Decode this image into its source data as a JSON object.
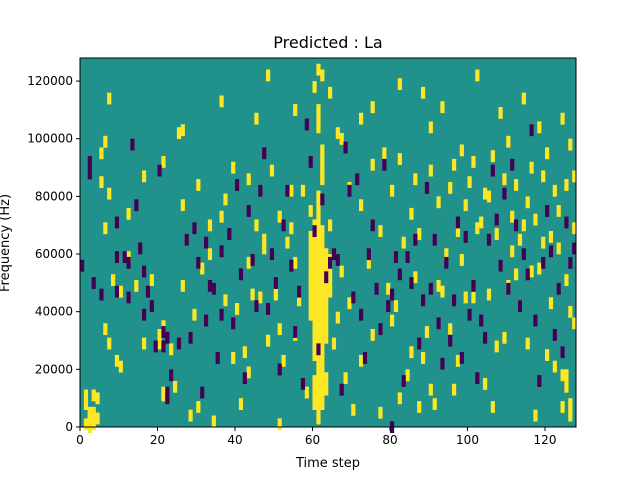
{
  "chart_data": {
    "type": "heatmap",
    "title": "Predicted : La",
    "xlabel": "Time step",
    "ylabel": "Frequency (Hz)",
    "xlim": [
      0,
      128
    ],
    "ylim": [
      0,
      128000
    ],
    "x_ticks": [
      0,
      20,
      40,
      60,
      80,
      100,
      120
    ],
    "y_ticks": [
      0,
      20000,
      40000,
      60000,
      80000,
      100000,
      120000
    ],
    "x_tick_labels": [
      "0",
      "20",
      "40",
      "60",
      "80",
      "100",
      "120"
    ],
    "y_tick_labels": [
      "0",
      "20000",
      "40000",
      "60000",
      "80000",
      "100000",
      "120000"
    ],
    "colormap": "viridis",
    "colors": {
      "background": "#21918c",
      "high": "#fde725",
      "low": "#440154"
    },
    "grid": false,
    "background_value": 0,
    "high_cells": [
      [
        1,
        9
      ],
      [
        1,
        2
      ],
      [
        3,
        12
      ],
      [
        2,
        6
      ],
      [
        2,
        1
      ],
      [
        3,
        6
      ],
      [
        4,
        4
      ],
      [
        5,
        96
      ],
      [
        6,
        100
      ],
      [
        7,
        115
      ],
      [
        1,
        12
      ],
      [
        3,
        4
      ],
      [
        3,
        5
      ],
      [
        3,
        3
      ],
      [
        3,
        2
      ],
      [
        2,
        3
      ],
      [
        2,
        5
      ],
      [
        4,
        11
      ],
      [
        6,
        70
      ],
      [
        5,
        86
      ],
      [
        8,
        52
      ],
      [
        7,
        30
      ],
      [
        10,
        48
      ],
      [
        9,
        24
      ],
      [
        12,
        60
      ],
      [
        14,
        50
      ],
      [
        16,
        30
      ],
      [
        18,
        52
      ],
      [
        20,
        33
      ],
      [
        21,
        36
      ],
      [
        20,
        30
      ],
      [
        21,
        13
      ],
      [
        21,
        12
      ],
      [
        23,
        28
      ],
      [
        24,
        15
      ],
      [
        26,
        50
      ],
      [
        28,
        5
      ],
      [
        29,
        40
      ],
      [
        30,
        8
      ],
      [
        31,
        56
      ],
      [
        33,
        61
      ],
      [
        34,
        3
      ],
      [
        36,
        74
      ],
      [
        37,
        45
      ],
      [
        39,
        25
      ],
      [
        40,
        42
      ],
      [
        41,
        9
      ],
      [
        42,
        27
      ],
      [
        43,
        58
      ],
      [
        43,
        20
      ],
      [
        44,
        47
      ],
      [
        45,
        71
      ],
      [
        46,
        46
      ],
      [
        47,
        63
      ],
      [
        48,
        31
      ],
      [
        49,
        90
      ],
      [
        50,
        47
      ],
      [
        51,
        35
      ],
      [
        51,
        2
      ],
      [
        52,
        24
      ],
      [
        53,
        65
      ],
      [
        54,
        70
      ],
      [
        55,
        58
      ],
      [
        55,
        33
      ],
      [
        56,
        45
      ],
      [
        57,
        83
      ],
      [
        58,
        13
      ],
      [
        59,
        52
      ],
      [
        61,
        26
      ],
      [
        62,
        40
      ],
      [
        63,
        49
      ],
      [
        64,
        48
      ],
      [
        65,
        30
      ],
      [
        66,
        39
      ],
      [
        67,
        55
      ],
      [
        68,
        18
      ],
      [
        69,
        44
      ],
      [
        70,
        7
      ],
      [
        72,
        24
      ],
      [
        74,
        58
      ],
      [
        75,
        33
      ],
      [
        77,
        6
      ],
      [
        79,
        49
      ],
      [
        80,
        38
      ],
      [
        81,
        43
      ],
      [
        82,
        11
      ],
      [
        83,
        65
      ],
      [
        84,
        19
      ],
      [
        85,
        27
      ],
      [
        86,
        53
      ],
      [
        87,
        8
      ],
      [
        88,
        25
      ],
      [
        89,
        34
      ],
      [
        90,
        14
      ],
      [
        91,
        9
      ],
      [
        92,
        50
      ],
      [
        93,
        48
      ],
      [
        94,
        61
      ],
      [
        95,
        35
      ],
      [
        96,
        14
      ],
      [
        97,
        24
      ],
      [
        98,
        59
      ],
      [
        99,
        46
      ],
      [
        101,
        46
      ],
      [
        102,
        70
      ],
      [
        104,
        16
      ],
      [
        105,
        47
      ],
      [
        106,
        8
      ],
      [
        107,
        29
      ],
      [
        109,
        32
      ],
      [
        110,
        50
      ],
      [
        111,
        62
      ],
      [
        112,
        54
      ],
      [
        113,
        43
      ],
      [
        114,
        71
      ],
      [
        115,
        30
      ],
      [
        116,
        55
      ],
      [
        117,
        5
      ],
      [
        118,
        56
      ],
      [
        119,
        65
      ],
      [
        120,
        26
      ],
      [
        121,
        44
      ],
      [
        122,
        22
      ],
      [
        123,
        63
      ],
      [
        124,
        8
      ],
      [
        125,
        52
      ],
      [
        126,
        41
      ],
      [
        127,
        37
      ],
      [
        26,
        104
      ],
      [
        25,
        103
      ],
      [
        36,
        114
      ],
      [
        45,
        108
      ],
      [
        48,
        123
      ],
      [
        55,
        111
      ],
      [
        60,
        119
      ],
      [
        61,
        125
      ],
      [
        62,
        123
      ],
      [
        64,
        117
      ],
      [
        66,
        103
      ],
      [
        72,
        108
      ],
      [
        75,
        112
      ],
      [
        78,
        96
      ],
      [
        82,
        120
      ],
      [
        86,
        87
      ],
      [
        88,
        117
      ],
      [
        90,
        105
      ],
      [
        93,
        112
      ],
      [
        96,
        92
      ],
      [
        98,
        97
      ],
      [
        100,
        86
      ],
      [
        102,
        123
      ],
      [
        104,
        82
      ],
      [
        106,
        95
      ],
      [
        108,
        110
      ],
      [
        110,
        100
      ],
      [
        112,
        85
      ],
      [
        114,
        115
      ],
      [
        116,
        91
      ],
      [
        118,
        105
      ],
      [
        120,
        96
      ],
      [
        122,
        83
      ],
      [
        124,
        108
      ],
      [
        126,
        99
      ],
      [
        127,
        88
      ],
      [
        7,
        82
      ],
      [
        12,
        75
      ],
      [
        16,
        88
      ],
      [
        21,
        93
      ],
      [
        26,
        78
      ],
      [
        30,
        85
      ],
      [
        33,
        71
      ],
      [
        37,
        80
      ],
      [
        39,
        91
      ],
      [
        43,
        87
      ],
      [
        47,
        66
      ],
      [
        51,
        74
      ],
      [
        54,
        83
      ],
      [
        59,
        76
      ],
      [
        62,
        88
      ],
      [
        64,
        71
      ],
      [
        67,
        101
      ],
      [
        69,
        84
      ],
      [
        72,
        78
      ],
      [
        75,
        92
      ],
      [
        77,
        69
      ],
      [
        80,
        83
      ],
      [
        82,
        94
      ],
      [
        85,
        75
      ],
      [
        87,
        68
      ],
      [
        90,
        90
      ],
      [
        92,
        79
      ],
      [
        95,
        84
      ],
      [
        97,
        69
      ],
      [
        99,
        78
      ],
      [
        101,
        93
      ],
      [
        103,
        72
      ],
      [
        105,
        81
      ],
      [
        107,
        68
      ],
      [
        109,
        87
      ],
      [
        111,
        74
      ],
      [
        113,
        66
      ],
      [
        115,
        79
      ],
      [
        117,
        73
      ],
      [
        119,
        88
      ],
      [
        121,
        67
      ],
      [
        123,
        76
      ],
      [
        125,
        85
      ],
      [
        127,
        70
      ],
      [
        6,
        35
      ],
      [
        10,
        22
      ]
    ],
    "low_cells": [
      [
        0,
        57
      ],
      [
        2,
        93
      ],
      [
        2,
        89
      ],
      [
        3,
        51
      ],
      [
        5,
        47
      ],
      [
        9,
        60
      ],
      [
        9,
        72
      ],
      [
        11,
        60
      ],
      [
        12,
        46
      ],
      [
        13,
        99
      ],
      [
        14,
        78
      ],
      [
        15,
        63
      ],
      [
        16,
        55
      ],
      [
        16,
        40
      ],
      [
        17,
        48
      ],
      [
        18,
        43
      ],
      [
        19,
        29
      ],
      [
        20,
        90
      ],
      [
        21,
        34
      ],
      [
        22,
        32
      ],
      [
        22,
        13
      ],
      [
        22,
        11
      ],
      [
        23,
        19
      ],
      [
        25,
        30
      ],
      [
        27,
        66
      ],
      [
        28,
        32
      ],
      [
        29,
        70
      ],
      [
        30,
        58
      ],
      [
        31,
        13
      ],
      [
        32,
        65
      ],
      [
        32,
        38
      ],
      [
        33,
        50
      ],
      [
        34,
        49
      ],
      [
        35,
        25
      ],
      [
        36,
        62
      ],
      [
        38,
        68
      ],
      [
        39,
        37
      ],
      [
        40,
        85
      ],
      [
        41,
        54
      ],
      [
        42,
        18
      ],
      [
        43,
        76
      ],
      [
        44,
        59
      ],
      [
        45,
        43
      ],
      [
        46,
        83
      ],
      [
        47,
        96
      ],
      [
        48,
        42
      ],
      [
        49,
        61
      ],
      [
        50,
        51
      ],
      [
        51,
        21
      ],
      [
        52,
        71
      ],
      [
        53,
        83
      ],
      [
        54,
        57
      ],
      [
        55,
        34
      ],
      [
        56,
        48
      ],
      [
        57,
        16
      ],
      [
        58,
        106
      ],
      [
        59,
        93
      ],
      [
        60,
        69
      ],
      [
        61,
        28
      ],
      [
        62,
        80
      ],
      [
        63,
        53
      ],
      [
        64,
        58
      ],
      [
        65,
        61
      ],
      [
        66,
        59
      ],
      [
        67,
        14
      ],
      [
        68,
        98
      ],
      [
        69,
        83
      ],
      [
        70,
        46
      ],
      [
        71,
        87
      ],
      [
        72,
        40
      ],
      [
        73,
        25
      ],
      [
        74,
        61
      ],
      [
        75,
        71
      ],
      [
        76,
        49
      ],
      [
        77,
        35
      ],
      [
        78,
        92
      ],
      [
        79,
        43
      ],
      [
        80,
        1
      ],
      [
        80,
        47
      ],
      [
        81,
        60
      ],
      [
        82,
        54
      ],
      [
        83,
        17
      ],
      [
        84,
        60
      ],
      [
        85,
        51
      ],
      [
        86,
        66
      ],
      [
        87,
        30
      ],
      [
        88,
        45
      ],
      [
        89,
        84
      ],
      [
        90,
        49
      ],
      [
        91,
        66
      ],
      [
        92,
        37
      ],
      [
        93,
        23
      ],
      [
        94,
        58
      ],
      [
        95,
        31
      ],
      [
        96,
        45
      ],
      [
        97,
        72
      ],
      [
        98,
        25
      ],
      [
        99,
        67
      ],
      [
        100,
        40
      ],
      [
        101,
        50
      ],
      [
        102,
        18
      ],
      [
        103,
        38
      ],
      [
        104,
        32
      ],
      [
        105,
        66
      ],
      [
        106,
        90
      ],
      [
        107,
        73
      ],
      [
        108,
        57
      ],
      [
        109,
        82
      ],
      [
        110,
        49
      ],
      [
        111,
        92
      ],
      [
        112,
        71
      ],
      [
        113,
        43
      ],
      [
        114,
        61
      ],
      [
        115,
        54
      ],
      [
        116,
        104
      ],
      [
        117,
        38
      ],
      [
        118,
        17
      ],
      [
        119,
        58
      ],
      [
        120,
        76
      ],
      [
        121,
        62
      ],
      [
        122,
        33
      ],
      [
        123,
        49
      ],
      [
        124,
        27
      ],
      [
        125,
        72
      ],
      [
        126,
        58
      ],
      [
        127,
        63
      ],
      [
        9,
        48
      ],
      [
        12,
        58
      ],
      [
        21,
        29
      ],
      [
        36,
        40
      ]
    ],
    "bands": [
      {
        "x_start": 59,
        "x_end": 60,
        "y_start": 37,
        "y_end": 68,
        "value": 1
      },
      {
        "x_start": 60,
        "x_end": 61,
        "y_start": 23,
        "y_end": 72,
        "value": 1
      },
      {
        "x_start": 61,
        "x_end": 62,
        "y_start": 1,
        "y_end": 82,
        "value": 1
      },
      {
        "x_start": 62,
        "x_end": 63,
        "y_start": 6,
        "y_end": 70,
        "value": 1
      },
      {
        "x_start": 63,
        "x_end": 64,
        "y_start": 29,
        "y_end": 62,
        "value": 1
      },
      {
        "x_start": 64,
        "x_end": 65,
        "y_start": 46,
        "y_end": 60,
        "value": 1
      },
      {
        "x_start": 60,
        "x_end": 61,
        "y_start": 6,
        "y_end": 18,
        "value": 1
      },
      {
        "x_start": 63,
        "x_end": 64,
        "y_start": 11,
        "y_end": 19,
        "value": 1
      },
      {
        "x_start": 62,
        "x_end": 63,
        "y_start": 84,
        "y_end": 98,
        "value": 1
      },
      {
        "x_start": 61,
        "x_end": 62,
        "y_start": 102,
        "y_end": 112,
        "value": 1
      },
      {
        "x_start": 125,
        "x_end": 126,
        "y_start": 12,
        "y_end": 20,
        "value": 1
      },
      {
        "x_start": 124,
        "x_end": 125,
        "y_start": 16,
        "y_end": 20,
        "value": 1
      },
      {
        "x_start": 126,
        "x_end": 127,
        "y_start": 2,
        "y_end": 10,
        "value": 1
      }
    ]
  }
}
